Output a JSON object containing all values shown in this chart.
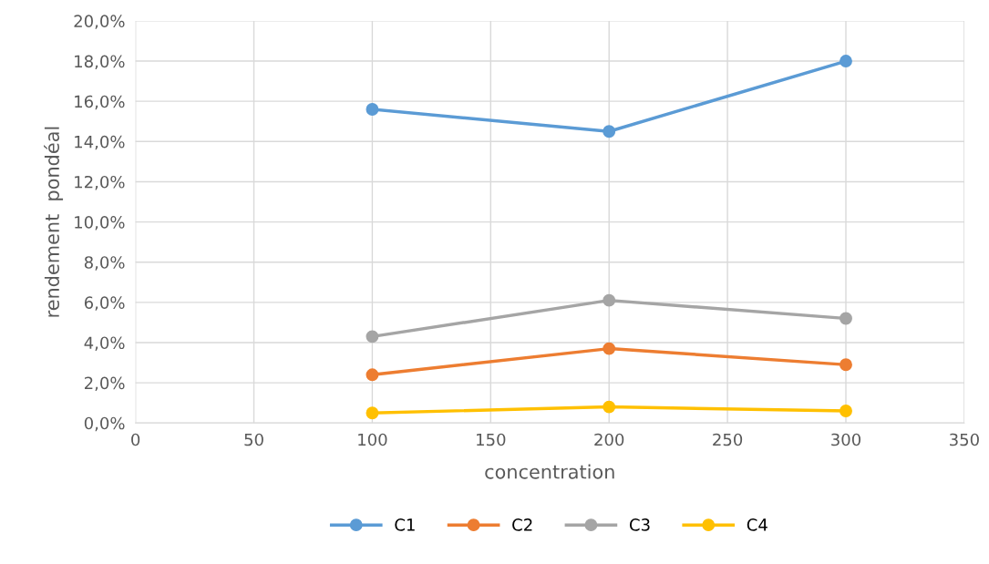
{
  "chart_data": {
    "type": "line",
    "xlabel": "concentration",
    "ylabel": "rendement  pondéal",
    "x": [
      100,
      200,
      300
    ],
    "series": [
      {
        "name": "C1",
        "color": "#5b9bd5",
        "values": [
          15.6,
          14.5,
          18.0
        ]
      },
      {
        "name": "C2",
        "color": "#ed7d31",
        "values": [
          2.4,
          3.7,
          2.9
        ]
      },
      {
        "name": "C3",
        "color": "#a5a5a5",
        "values": [
          4.3,
          6.1,
          5.2
        ]
      },
      {
        "name": "C4",
        "color": "#ffc000",
        "values": [
          0.5,
          0.8,
          0.6
        ]
      }
    ],
    "xlim": [
      0,
      350
    ],
    "xticks": [
      0,
      50,
      100,
      150,
      200,
      250,
      300,
      350
    ],
    "ylim": [
      0,
      20
    ],
    "yticks": [
      {
        "value": 0,
        "label": "0,0%"
      },
      {
        "value": 2,
        "label": "2,0%"
      },
      {
        "value": 4,
        "label": "4,0%"
      },
      {
        "value": 6,
        "label": "6,0%"
      },
      {
        "value": 8,
        "label": "8,0%"
      },
      {
        "value": 10,
        "label": "10,0%"
      },
      {
        "value": 12,
        "label": "12,0%"
      },
      {
        "value": 14,
        "label": "14,0%"
      },
      {
        "value": 16,
        "label": "16,0%"
      },
      {
        "value": 18,
        "label": "18,0%"
      },
      {
        "value": 20,
        "label": "20,0%"
      }
    ],
    "grid": true,
    "legend": "bottom",
    "marker": "circle",
    "line_style": "solid"
  }
}
